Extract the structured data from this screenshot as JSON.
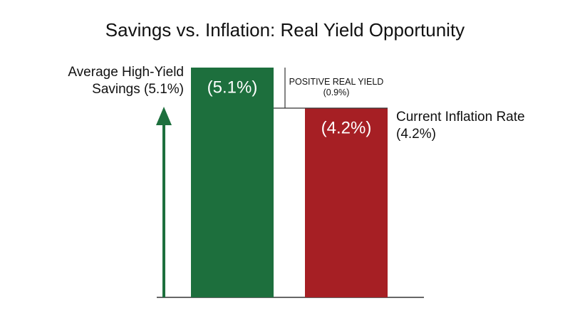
{
  "chart_data": {
    "type": "bar",
    "title": "Savings vs. Inflation: Real Yield Opportunity",
    "categories": [
      "Average High-Yield Savings (5.1%)",
      "Current Inflation Rate (4.2%)"
    ],
    "values": [
      5.1,
      4.2
    ],
    "value_labels": [
      "(5.1%)",
      "(4.2%)"
    ],
    "colors": [
      "#1d6f3d",
      "#a61f24"
    ],
    "annotation": "POSITIVE REAL YIELD (0.9%)"
  }
}
